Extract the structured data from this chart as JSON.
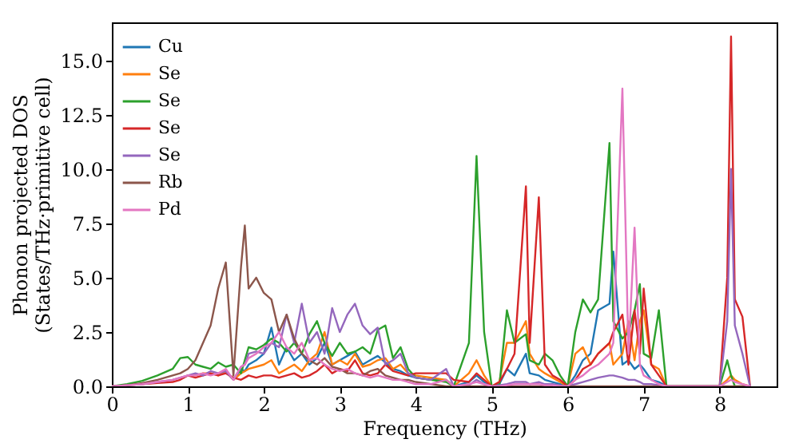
{
  "chart_data": {
    "type": "line",
    "xlabel": "Frequency (THz)",
    "ylabel": "Phonon projected DOS\n(States/THz·primitive cell)",
    "xlim": [
      0,
      8.75
    ],
    "xticks": [
      0,
      1,
      2,
      3,
      4,
      5,
      6,
      7,
      8
    ],
    "ylim": [
      0,
      16.75
    ],
    "yticks": [
      {
        "value": 0,
        "label": "0.0"
      },
      {
        "value": 2.5,
        "label": "2.5"
      },
      {
        "value": 5,
        "label": "5.0"
      },
      {
        "value": 7.5,
        "label": "7.5"
      },
      {
        "value": 10,
        "label": "10.0"
      },
      {
        "value": 12.5,
        "label": "12.5"
      },
      {
        "value": 15,
        "label": "15.0"
      }
    ],
    "grid": false,
    "legend": "top left",
    "marker": "none",
    "line_style": "solid",
    "x": [
      0,
      0.2,
      0.4,
      0.6,
      0.8,
      0.9,
      1.0,
      1.1,
      1.2,
      1.3,
      1.4,
      1.5,
      1.6,
      1.7,
      1.75,
      1.8,
      1.9,
      2.0,
      2.1,
      2.2,
      2.3,
      2.4,
      2.5,
      2.6,
      2.7,
      2.8,
      2.9,
      3.0,
      3.1,
      3.2,
      3.3,
      3.4,
      3.5,
      3.6,
      3.7,
      3.8,
      3.9,
      4.0,
      4.2,
      4.4,
      4.5,
      4.7,
      4.8,
      4.9,
      5.0,
      5.1,
      5.2,
      5.3,
      5.45,
      5.5,
      5.62,
      5.7,
      5.8,
      5.9,
      6.0,
      6.1,
      6.2,
      6.3,
      6.4,
      6.55,
      6.6,
      6.72,
      6.8,
      6.88,
      6.95,
      7.0,
      7.1,
      7.2,
      7.3,
      8.0,
      8.1,
      8.15,
      8.2,
      8.3,
      8.4
    ],
    "series": [
      {
        "name": "Cu",
        "color": "#1f77b4",
        "values": [
          null,
          null,
          null,
          null,
          null,
          null,
          null,
          null,
          null,
          null,
          null,
          0.7,
          0.3,
          0.8,
          0.7,
          1.0,
          1.2,
          1.5,
          2.7,
          1.0,
          1.8,
          1.2,
          1.5,
          1.0,
          1.3,
          2.0,
          1.0,
          1.2,
          1.4,
          1.6,
          1.0,
          1.2,
          1.4,
          1.1,
          0.8,
          0.7,
          0.5,
          0.4,
          0.3,
          0.3,
          0,
          0.2,
          0.5,
          0.2,
          0,
          0.1,
          0.8,
          0.5,
          1.5,
          0.6,
          0.5,
          0.3,
          0.2,
          0.1,
          0,
          0.5,
          1.2,
          1.5,
          3.5,
          3.8,
          6.2,
          1.0,
          1.2,
          0.8,
          1.0,
          0.8,
          0.3,
          0.2,
          0,
          0,
          null,
          null,
          null,
          null,
          null
        ]
      },
      {
        "name": "Se",
        "color": "#ff7f0e",
        "values": [
          null,
          null,
          null,
          null,
          null,
          null,
          0.5,
          0.5,
          0.6,
          0.6,
          0.5,
          0.7,
          0.3,
          0.6,
          0.7,
          0.8,
          0.9,
          1.0,
          1.2,
          0.6,
          0.8,
          1.0,
          0.7,
          1.2,
          1.5,
          2.5,
          1.0,
          1.2,
          1.0,
          1.5,
          0.9,
          1.0,
          1.2,
          1.3,
          0.8,
          1.0,
          0.6,
          0.5,
          0.4,
          0.3,
          0,
          0.6,
          1.2,
          0.5,
          0,
          0.2,
          2.0,
          2.0,
          3.0,
          1.5,
          0.8,
          0.6,
          0.4,
          0.2,
          0,
          1.5,
          1.8,
          1.0,
          1.5,
          2.0,
          1.0,
          1.5,
          3.0,
          1.2,
          3.0,
          3.5,
          1.0,
          0.8,
          0,
          0,
          0.3,
          0.5,
          0.3,
          0.1,
          0
        ]
      },
      {
        "name": "Se",
        "color": "#2ca02c",
        "values": [
          0,
          0.1,
          0.25,
          0.5,
          0.8,
          1.3,
          1.35,
          1.0,
          0.9,
          0.8,
          1.1,
          0.9,
          1.0,
          0.6,
          1.2,
          1.8,
          1.7,
          1.9,
          2.2,
          2.0,
          1.6,
          2.0,
          1.5,
          2.4,
          3.0,
          2.0,
          1.4,
          2.0,
          1.5,
          1.6,
          1.8,
          1.5,
          2.6,
          2.8,
          1.3,
          1.8,
          0.8,
          0.4,
          0.3,
          0.2,
          0,
          2.0,
          10.6,
          2.5,
          0,
          0,
          3.5,
          2.0,
          2.4,
          1.2,
          1.0,
          1.5,
          1.2,
          0.5,
          0,
          2.5,
          4.0,
          3.4,
          4.0,
          11.2,
          3.0,
          2.2,
          2.5,
          3.5,
          4.7,
          1.5,
          1.3,
          3.5,
          0,
          0,
          1.2,
          0.5,
          0,
          0,
          0
        ]
      },
      {
        "name": "Se",
        "color": "#d62728",
        "values": [
          0,
          0.05,
          0.1,
          0.15,
          0.2,
          0.3,
          0.5,
          0.4,
          0.5,
          0.6,
          0.5,
          0.6,
          0.4,
          0.3,
          0.4,
          0.5,
          0.4,
          0.5,
          0.5,
          0.4,
          0.5,
          0.6,
          0.4,
          0.5,
          0.7,
          1.0,
          0.6,
          0.8,
          0.7,
          1.2,
          0.6,
          0.5,
          0.6,
          1.0,
          0.7,
          0.6,
          0.5,
          0.6,
          0.6,
          0.6,
          0.3,
          0.2,
          0.6,
          0.3,
          0,
          0.2,
          0.8,
          1.5,
          9.2,
          2.0,
          8.7,
          1.0,
          0.5,
          0.3,
          0,
          0.3,
          0.8,
          1.0,
          1.5,
          2.0,
          2.5,
          3.3,
          1.0,
          3.5,
          1.5,
          4.5,
          1.0,
          0.5,
          0,
          0,
          5.0,
          16.1,
          4.0,
          3.2,
          0
        ]
      },
      {
        "name": "Se",
        "color": "#9467bd",
        "values": [
          0,
          0.05,
          0.1,
          0.2,
          0.3,
          0.4,
          0.5,
          0.6,
          0.5,
          0.7,
          0.6,
          0.7,
          0.3,
          0.9,
          1.0,
          1.5,
          1.6,
          1.5,
          2.0,
          1.8,
          3.3,
          2.0,
          3.8,
          2.0,
          2.5,
          1.5,
          3.6,
          2.5,
          3.3,
          3.8,
          2.8,
          2.4,
          2.7,
          1.0,
          1.2,
          1.5,
          0.6,
          0.4,
          0.3,
          0.8,
          0,
          0.05,
          0.3,
          0.1,
          0,
          0.05,
          0.1,
          0.2,
          0.2,
          0.1,
          0.2,
          0.1,
          0.1,
          0.05,
          0,
          0.1,
          0.2,
          0.3,
          0.4,
          0.5,
          0.5,
          0.4,
          0.3,
          0.3,
          0.2,
          0.1,
          0.1,
          0.05,
          0,
          0,
          3.0,
          10.0,
          2.8,
          1.5,
          0
        ]
      },
      {
        "name": "Rb",
        "color": "#8c564b",
        "values": [
          0,
          0.05,
          0.15,
          0.3,
          0.5,
          0.6,
          0.8,
          1.2,
          2.0,
          2.8,
          4.5,
          5.7,
          0.5,
          5.5,
          7.4,
          4.5,
          5.0,
          4.3,
          4.0,
          2.5,
          3.3,
          2.2,
          1.5,
          1.2,
          1.0,
          1.3,
          0.9,
          0.8,
          0.6,
          0.6,
          0.5,
          0.7,
          0.8,
          0.5,
          0.4,
          0.3,
          0.3,
          0.2,
          0.1,
          0,
          0,
          0,
          0,
          0,
          0,
          0,
          0,
          0,
          0,
          0,
          0,
          0,
          0,
          0,
          0,
          0,
          0,
          0,
          0,
          0,
          0,
          0,
          0,
          0,
          0,
          0,
          0,
          0,
          0,
          0,
          0,
          0,
          0,
          0,
          0
        ]
      },
      {
        "name": "Pd",
        "color": "#e377c2",
        "values": [
          0,
          0.05,
          0.1,
          0.2,
          0.3,
          0.4,
          0.5,
          0.5,
          0.6,
          0.5,
          0.6,
          0.8,
          0.3,
          0.9,
          1.0,
          1.3,
          1.5,
          1.8,
          2.0,
          2.5,
          1.8,
          1.5,
          2.0,
          1.2,
          1.3,
          1.0,
          0.8,
          0.7,
          0.8,
          0.6,
          0.5,
          0.4,
          0.5,
          0.4,
          0.3,
          0.3,
          0.2,
          0.1,
          0.1,
          0.3,
          0,
          0.1,
          0.2,
          0.1,
          0,
          0,
          0.05,
          0.1,
          0.1,
          0.1,
          0.1,
          0.05,
          0.05,
          0,
          0,
          0.3,
          0.5,
          0.8,
          1.0,
          1.5,
          2.0,
          13.7,
          1.5,
          7.3,
          1.0,
          0.5,
          0.3,
          0.1,
          0,
          0,
          0.2,
          0.3,
          0.2,
          0.1,
          0
        ]
      }
    ]
  }
}
